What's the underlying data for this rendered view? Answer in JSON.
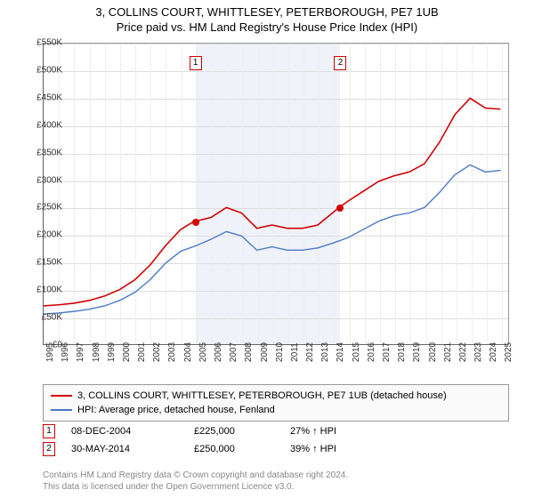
{
  "title_line1": "3, COLLINS COURT, WHITTLESEY, PETERBOROUGH, PE7 1UB",
  "title_line2": "Price paid vs. HM Land Registry's House Price Index (HPI)",
  "chart": {
    "type": "line",
    "background_color": "#ffffff",
    "grid_color": "#dddddd",
    "border_color": "#666666",
    "ylim": [
      0,
      550000
    ],
    "ytick_step": 50000,
    "y_ticks": [
      "£0",
      "£50K",
      "£100K",
      "£150K",
      "£200K",
      "£250K",
      "£300K",
      "£350K",
      "£400K",
      "£450K",
      "£500K",
      "£550K"
    ],
    "x_years": [
      1995,
      1996,
      1997,
      1998,
      1999,
      2000,
      2001,
      2002,
      2003,
      2004,
      2005,
      2006,
      2007,
      2008,
      2009,
      2010,
      2011,
      2012,
      2013,
      2014,
      2015,
      2016,
      2017,
      2018,
      2019,
      2020,
      2021,
      2022,
      2023,
      2024,
      2025
    ],
    "x_min": 1995,
    "x_max": 2025.5,
    "band_color": "#e6e9f7",
    "series": [
      {
        "name": "property",
        "label": "3, COLLINS COURT, WHITTLESEY, PETERBOROUGH, PE7 1UB (detached house)",
        "color": "#d10000",
        "line_width": 1.6,
        "data": [
          [
            1995,
            70000
          ],
          [
            1996,
            72000
          ],
          [
            1997,
            75000
          ],
          [
            1998,
            80000
          ],
          [
            1999,
            88000
          ],
          [
            2000,
            100000
          ],
          [
            2001,
            118000
          ],
          [
            2002,
            145000
          ],
          [
            2003,
            180000
          ],
          [
            2004,
            210000
          ],
          [
            2004.9,
            225000
          ],
          [
            2005,
            225000
          ],
          [
            2006,
            232000
          ],
          [
            2007,
            250000
          ],
          [
            2008,
            240000
          ],
          [
            2009,
            212000
          ],
          [
            2010,
            218000
          ],
          [
            2011,
            212000
          ],
          [
            2012,
            212000
          ],
          [
            2013,
            218000
          ],
          [
            2014.4,
            250000
          ],
          [
            2015,
            262000
          ],
          [
            2016,
            280000
          ],
          [
            2017,
            298000
          ],
          [
            2018,
            308000
          ],
          [
            2019,
            315000
          ],
          [
            2020,
            330000
          ],
          [
            2021,
            370000
          ],
          [
            2022,
            420000
          ],
          [
            2023,
            450000
          ],
          [
            2024,
            432000
          ],
          [
            2025,
            430000
          ]
        ]
      },
      {
        "name": "hpi",
        "label": "HPI: Average price, detached house, Fenland",
        "color": "#4a7ac7",
        "line_width": 1.4,
        "data": [
          [
            1995,
            55000
          ],
          [
            1996,
            57000
          ],
          [
            1997,
            60000
          ],
          [
            1998,
            64000
          ],
          [
            1999,
            70000
          ],
          [
            2000,
            80000
          ],
          [
            2001,
            95000
          ],
          [
            2002,
            118000
          ],
          [
            2003,
            148000
          ],
          [
            2004,
            170000
          ],
          [
            2005,
            180000
          ],
          [
            2006,
            192000
          ],
          [
            2007,
            206000
          ],
          [
            2008,
            198000
          ],
          [
            2009,
            172000
          ],
          [
            2010,
            178000
          ],
          [
            2011,
            172000
          ],
          [
            2012,
            172000
          ],
          [
            2013,
            176000
          ],
          [
            2014,
            185000
          ],
          [
            2015,
            195000
          ],
          [
            2016,
            210000
          ],
          [
            2017,
            225000
          ],
          [
            2018,
            235000
          ],
          [
            2019,
            240000
          ],
          [
            2020,
            250000
          ],
          [
            2021,
            278000
          ],
          [
            2022,
            310000
          ],
          [
            2023,
            328000
          ],
          [
            2024,
            315000
          ],
          [
            2025,
            318000
          ]
        ]
      }
    ],
    "sales": [
      {
        "n": "1",
        "year": 2004.93,
        "price": 225000,
        "date": "08-DEC-2004",
        "price_label": "£225,000",
        "pct_label": "27% ↑ HPI"
      },
      {
        "n": "2",
        "year": 2014.41,
        "price": 250000,
        "date": "30-MAY-2014",
        "price_label": "£250,000",
        "pct_label": "39% ↑ HPI"
      }
    ],
    "sale_marker_border": "#d10000",
    "sale_dot_color": "#d10000"
  },
  "legend": {
    "row1_label": "3, COLLINS COURT, WHITTLESEY, PETERBOROUGH, PE7 1UB (detached house)",
    "row2_label": "HPI: Average price, detached house, Fenland"
  },
  "footer_line1": "Contains HM Land Registry data © Crown copyright and database right 2024.",
  "footer_line2": "This data is licensed under the Open Government Licence v3.0."
}
